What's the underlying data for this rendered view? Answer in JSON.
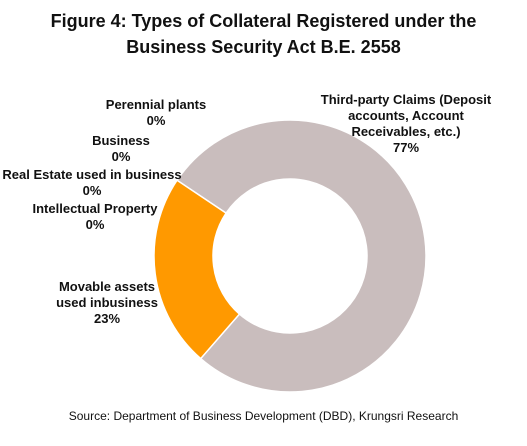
{
  "title": {
    "prefix": "Figure 4",
    "rest": ": Types of Collateral Registered under the",
    "line2": "Business Security Act B.E. 2558"
  },
  "source": "Source: Department of Business Development (DBD), Krungsri Research",
  "chart_data": {
    "type": "pie",
    "variant": "donut",
    "legend": "none",
    "slices": [
      {
        "name_lines": [
          "Third-party Claims (Deposit",
          "accounts, Account",
          "Receivables, etc.)"
        ],
        "value": 77,
        "pct": "77%",
        "color": "#c9bdbd"
      },
      {
        "name_lines": [
          "Movable assets",
          "used inbusiness"
        ],
        "value": 23,
        "pct": "23%",
        "color": "#ff9900"
      },
      {
        "name_lines": [
          "Intellectual Property"
        ],
        "value": 0,
        "pct": "0%",
        "color": "#ffffff"
      },
      {
        "name_lines": [
          "Real Estate used in business"
        ],
        "value": 0,
        "pct": "0%",
        "color": "#ffffff"
      },
      {
        "name_lines": [
          "Business"
        ],
        "value": 0,
        "pct": "0%",
        "color": "#ffffff"
      },
      {
        "name_lines": [
          "Perennial plants"
        ],
        "value": 0,
        "pct": "0%",
        "color": "#ffffff"
      }
    ]
  }
}
